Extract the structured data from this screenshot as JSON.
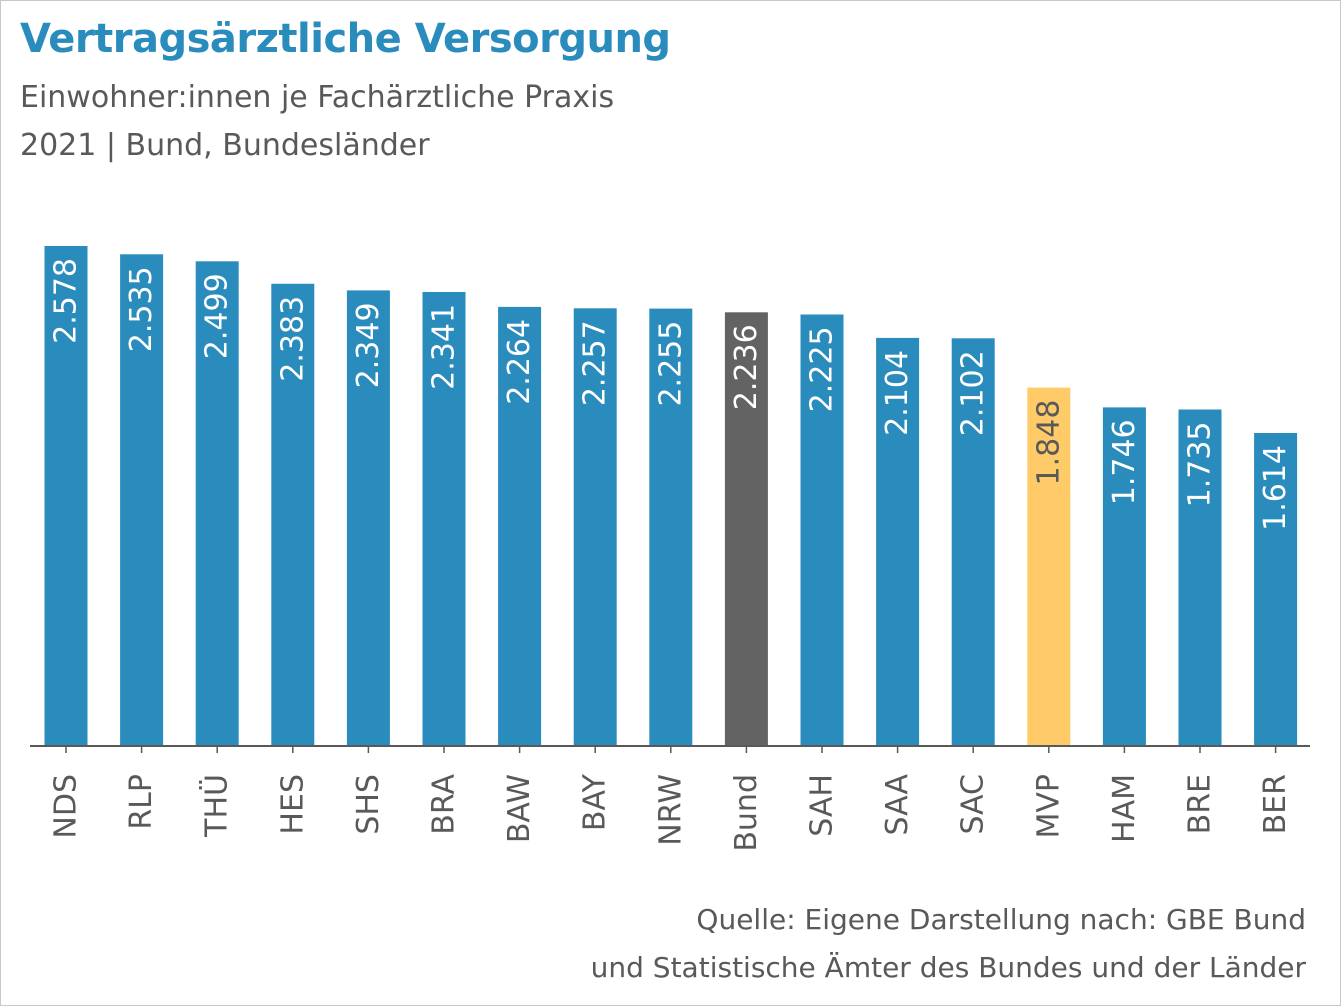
{
  "header": {
    "title": "Vertragsärztliche Versorgung",
    "subtitle_line1": "Einwohner:innen je Fachärztliche Praxis",
    "subtitle_line2": "2021 | Bund, Bundesländer"
  },
  "footer": {
    "source_line1": "Quelle: Eigene Darstellung nach: GBE Bund",
    "source_line2": "und Statistische Ämter des Bundes und der Länder"
  },
  "colors": {
    "default_bar": "#2a8bbd",
    "bund_bar": "#636363",
    "mvp_bar": "#ffca68",
    "label_light": "#ffffff",
    "label_dark": "#595959",
    "axis": "#595959"
  },
  "chart_data": {
    "type": "bar",
    "title": "Vertragsärztliche Versorgung",
    "subtitle": "Einwohner:innen je Fachärztliche Praxis — 2021 | Bund, Bundesländer",
    "xlabel": "",
    "ylabel": "",
    "ylim": [
      0,
      2578
    ],
    "grid": false,
    "legend": "none",
    "categories": [
      "NDS",
      "RLP",
      "THÜ",
      "HES",
      "SHS",
      "BRA",
      "BAW",
      "BAY",
      "NRW",
      "Bund",
      "SAH",
      "SAA",
      "SAC",
      "MVP",
      "HAM",
      "BRE",
      "BER"
    ],
    "values": [
      2578,
      2535,
      2499,
      2383,
      2349,
      2341,
      2264,
      2257,
      2255,
      2236,
      2225,
      2104,
      2102,
      1848,
      1746,
      1735,
      1614
    ],
    "data_labels": [
      "2.578",
      "2.535",
      "2.499",
      "2.383",
      "2.349",
      "2.341",
      "2.264",
      "2.257",
      "2.255",
      "2.236",
      "2.225",
      "2.104",
      "2.102",
      "1.848",
      "1.746",
      "1.735",
      "1.614"
    ],
    "highlight": {
      "Bund": "#636363",
      "MVP": "#ffca68"
    }
  }
}
